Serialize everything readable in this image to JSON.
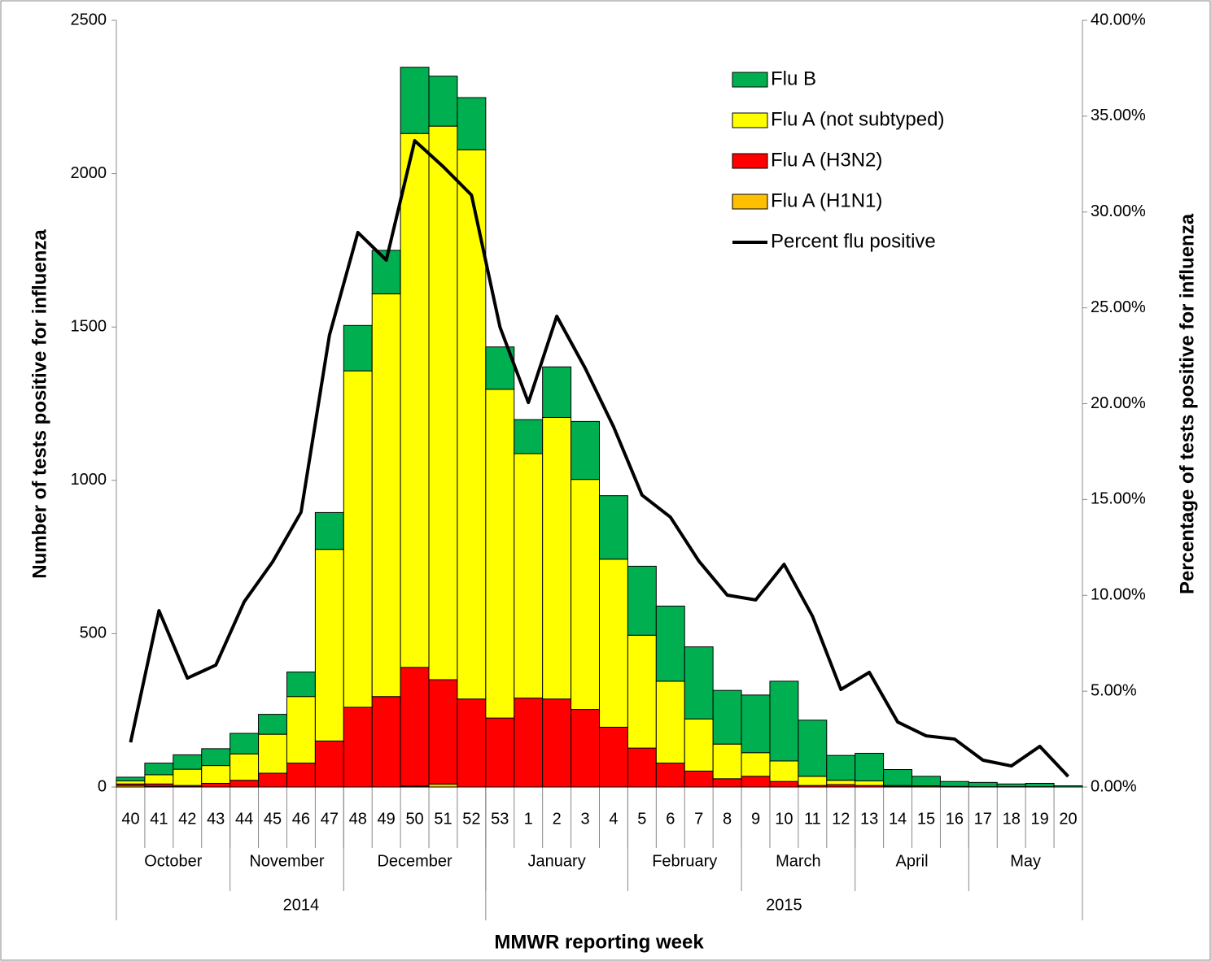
{
  "chart_data": {
    "type": "bar-line",
    "x_label": "MMWR reporting week",
    "y_label": "Number of tests positive for influenza",
    "y2_label": "Percentage  of  tests  positive for influenza",
    "categories": [
      "40",
      "41",
      "42",
      "43",
      "44",
      "45",
      "46",
      "47",
      "48",
      "49",
      "50",
      "51",
      "52",
      "53",
      "1",
      "2",
      "3",
      "4",
      "5",
      "6",
      "7",
      "8",
      "9",
      "10",
      "11",
      "12",
      "13",
      "14",
      "15",
      "16",
      "17",
      "18",
      "19",
      "20"
    ],
    "month_labels": [
      "October",
      null,
      null,
      null,
      "November",
      null,
      null,
      null,
      "December",
      null,
      null,
      null,
      null,
      "January",
      null,
      null,
      null,
      null,
      "February",
      null,
      null,
      null,
      "March",
      null,
      null,
      null,
      "April",
      null,
      null,
      null,
      "May",
      null,
      null,
      null
    ],
    "year_labels": [
      "2014",
      null,
      null,
      null,
      null,
      null,
      null,
      null,
      null,
      null,
      null,
      null,
      null,
      "2015",
      null,
      null,
      null,
      null,
      null,
      null,
      null,
      null,
      null,
      null,
      null,
      null,
      null,
      null,
      null,
      null,
      null,
      null,
      null,
      null
    ],
    "series": [
      {
        "name": "Flu B",
        "color": "#00b050",
        "kind": "bar",
        "values": [
          12,
          38,
          47,
          55,
          67,
          65,
          80,
          120,
          148,
          142,
          216,
          163,
          170,
          138,
          111,
          165,
          189,
          207,
          225,
          245,
          235,
          175,
          188,
          260,
          183,
          81,
          90,
          52,
          31,
          16,
          14,
          9,
          11,
          4
        ]
      },
      {
        "name": "Flu A (not subtyped)",
        "color": "#ffff00",
        "kind": "bar",
        "values": [
          10,
          30,
          53,
          58,
          86,
          127,
          217,
          625,
          1097,
          1313,
          1741,
          1805,
          1791,
          1072,
          797,
          918,
          750,
          548,
          368,
          267,
          170,
          113,
          77,
          67,
          30,
          14,
          15,
          3,
          3,
          2,
          1,
          1,
          1,
          0
        ]
      },
      {
        "name": "Flu A (H3N2)",
        "color": "#ff0000",
        "kind": "bar",
        "values": [
          5,
          8,
          4,
          12,
          22,
          45,
          78,
          150,
          260,
          295,
          387,
          340,
          287,
          225,
          290,
          287,
          253,
          195,
          127,
          78,
          52,
          27,
          35,
          18,
          5,
          8,
          5,
          2,
          1,
          0,
          0,
          0,
          0,
          0
        ]
      },
      {
        "name": "Flu A (H1N1)",
        "color": "#ffc000",
        "kind": "bar",
        "values": [
          5,
          2,
          1,
          0,
          0,
          0,
          0,
          0,
          0,
          0,
          3,
          10,
          0,
          0,
          0,
          0,
          0,
          0,
          0,
          0,
          0,
          0,
          0,
          0,
          0,
          0,
          0,
          0,
          0,
          0,
          0,
          0,
          0,
          0
        ]
      },
      {
        "name": "Percent flu positive",
        "color": "#000000",
        "kind": "line",
        "axis": "y2",
        "values": [
          2.33,
          9.2,
          5.68,
          6.36,
          9.67,
          11.75,
          14.34,
          23.58,
          28.93,
          27.49,
          33.72,
          32.37,
          30.88,
          24.0,
          20.06,
          24.56,
          21.85,
          18.79,
          15.23,
          14.08,
          11.79,
          10.01,
          9.76,
          11.62,
          8.91,
          5.09,
          5.98,
          3.39,
          2.67,
          2.5,
          1.4,
          1.1,
          2.12,
          0.55
        ]
      }
    ],
    "ylim": [
      0,
      2500
    ],
    "yticks": [
      0,
      500,
      1000,
      1500,
      2000,
      2500
    ],
    "y2lim": [
      0,
      40
    ],
    "y2ticks": [
      {
        "value": 0,
        "label": "0.00%"
      },
      {
        "value": 5,
        "label": "5.00%"
      },
      {
        "value": 10,
        "label": "10.00%"
      },
      {
        "value": 15,
        "label": "15.00%"
      },
      {
        "value": 20,
        "label": "20.00%"
      },
      {
        "value": 25,
        "label": "25.00%"
      },
      {
        "value": 30,
        "label": "30.00%"
      },
      {
        "value": 35,
        "label": "35.00%"
      },
      {
        "value": 40,
        "label": "40.00%"
      }
    ],
    "grid": false,
    "legend": "upper right"
  }
}
